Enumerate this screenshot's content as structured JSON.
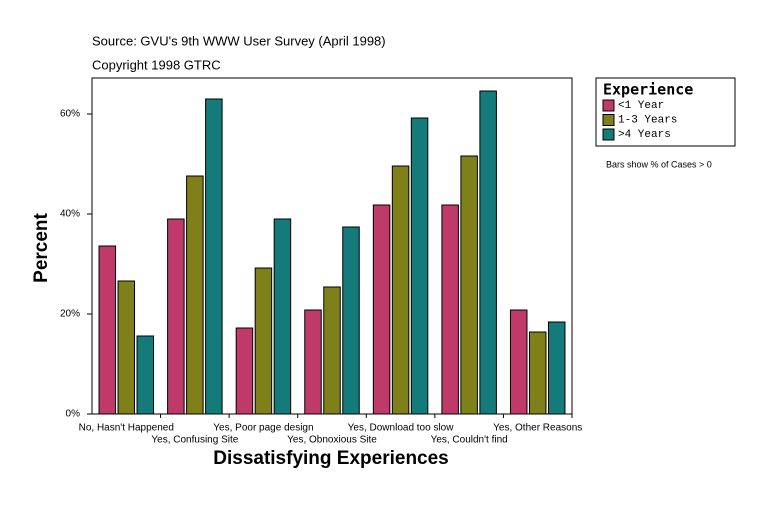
{
  "chart_data": {
    "type": "bar",
    "source": "Source: GVU's 9th WWW User Survey (April 1998)",
    "copyright": "Copyright 1998 GTRC",
    "x_label": "Dissatisfying Experiences",
    "y_label": "Percent",
    "legend_title": "Experience",
    "note": "Bars show % of Cases > 0",
    "categories": [
      "No, Hasn't Happened",
      "Yes, Confusing Site",
      "Yes, Poor page design",
      "Yes, Obnoxious Site",
      "Yes, Download too slow",
      "Yes, Couldn't find",
      "Yes, Other Reasons"
    ],
    "series": [
      {
        "name": "<1 Year",
        "color": "#bf3a68",
        "values": [
          33.6,
          39,
          17.2,
          20.8,
          41.8,
          41.8,
          20.8
        ]
      },
      {
        "name": "1-3 Years",
        "color": "#80801a",
        "values": [
          26.6,
          47.6,
          29.2,
          25.4,
          49.6,
          51.6,
          16.4
        ]
      },
      {
        "name": ">4 Years",
        "color": "#147a7a",
        "values": [
          15.6,
          63,
          39,
          37.4,
          59.2,
          64.6,
          18.4
        ]
      }
    ],
    "ylim": [
      0,
      67.2
    ],
    "yticks": [
      {
        "value": 0,
        "label": "0%"
      },
      {
        "value": 20,
        "label": "20%"
      },
      {
        "value": 40,
        "label": "40%"
      },
      {
        "value": 60,
        "label": "60%"
      }
    ]
  }
}
